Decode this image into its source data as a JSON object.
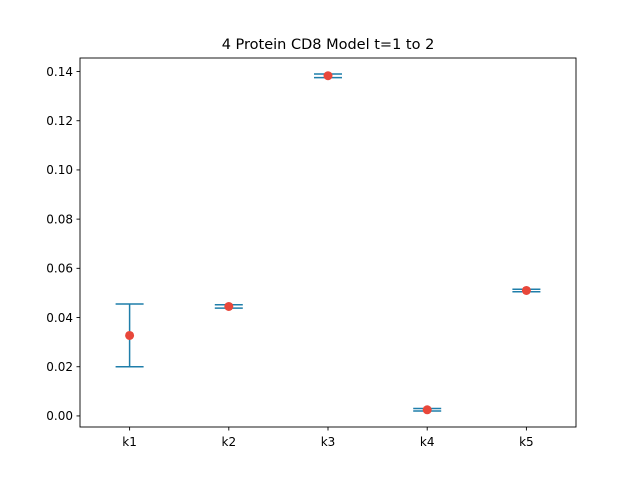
{
  "chart_data": {
    "type": "scatter",
    "title": "4 Protein CD8 Model t=1 to 2",
    "xlabel": "",
    "ylabel": "",
    "categories": [
      "k1",
      "k2",
      "k3",
      "k4",
      "k5"
    ],
    "values": [
      0.0327,
      0.0445,
      0.1383,
      0.0025,
      0.051
    ],
    "error_low": [
      0.02,
      0.0438,
      0.1375,
      0.002,
      0.0505
    ],
    "error_high": [
      0.0455,
      0.0452,
      0.139,
      0.003,
      0.0515
    ],
    "ylim": [
      -0.0045,
      0.1455
    ],
    "yticks": [
      0.0,
      0.02,
      0.04,
      0.06,
      0.08,
      0.1,
      0.12,
      0.14
    ],
    "ytick_labels": [
      "0.00",
      "0.02",
      "0.04",
      "0.06",
      "0.08",
      "0.10",
      "0.12",
      "0.14"
    ],
    "grid": false,
    "colors": {
      "point": "#e8473a",
      "errorbar": "#1f7eaa",
      "axis": "#000000"
    }
  }
}
